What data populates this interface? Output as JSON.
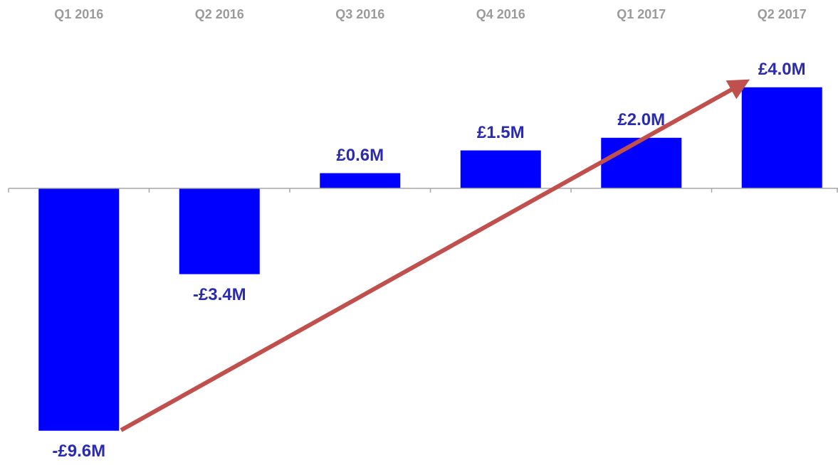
{
  "chart_data": {
    "type": "bar",
    "categories": [
      "Q1 2016",
      "Q2 2016",
      "Q3 2016",
      "Q4 2016",
      "Q1 2017",
      "Q2 2017"
    ],
    "values": [
      -9.6,
      -3.4,
      0.6,
      1.5,
      2.0,
      4.0
    ],
    "value_labels": [
      "-£9.6M",
      "-£3.4M",
      "£0.6M",
      "£1.5M",
      "£2.0M",
      "£4.0M"
    ],
    "color": "#0000ff",
    "ylim": [
      -10,
      4.5
    ]
  }
}
